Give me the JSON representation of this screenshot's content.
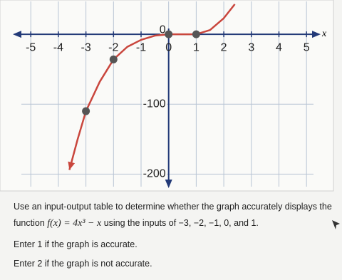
{
  "chart_data": {
    "type": "line",
    "xlabel": "x",
    "xlim": [
      -5.6,
      5.9
    ],
    "ylim": [
      -221,
      49
    ],
    "xticks": [
      -5,
      -4,
      -3,
      -2,
      -1,
      0,
      1,
      2,
      3,
      4,
      5
    ],
    "yticks": [
      0,
      -100,
      -200
    ],
    "grid": true,
    "series": [
      {
        "color": "#c9463d",
        "x": [
          -3.6,
          -3.3,
          -3,
          -2.5,
          -2,
          -1.5,
          -1,
          -0.5,
          0,
          0.5,
          1,
          1.5,
          2,
          2.4
        ],
        "values": [
          -194,
          -150,
          -110,
          -68,
          -36,
          -18,
          -8,
          -2,
          0,
          0,
          0,
          6,
          23,
          43
        ]
      },
      {
        "color": "#555555",
        "x": [
          -3,
          -2,
          0,
          1
        ],
        "values": [
          -110,
          -36,
          0,
          0
        ]
      }
    ]
  },
  "question": {
    "line1": "Use an input-output table to determine whether the graph accurately displays the",
    "line2_start": "function",
    "formula": "f(x) = 4x³ − x",
    "line2_end": "using the inputs of −3, −2, −1, 0, and 1.",
    "option1": "Enter 1 if the graph is accurate.",
    "option2": "Enter 2 if the graph is not accurate."
  }
}
